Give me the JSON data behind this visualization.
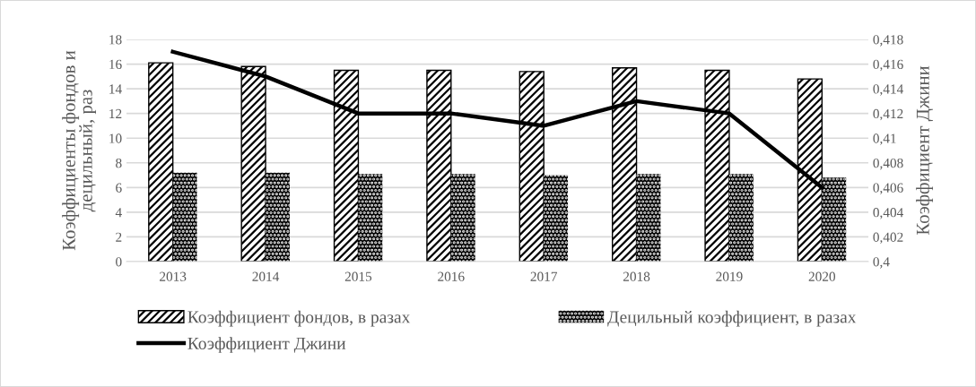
{
  "chart_data": {
    "type": "bar",
    "categories": [
      "2013",
      "2014",
      "2015",
      "2016",
      "2017",
      "2018",
      "2019",
      "2020"
    ],
    "series": [
      {
        "name": "Коэффициент фондов, в разах",
        "color": "#000000",
        "values": [
          16.1,
          15.8,
          15.5,
          15.5,
          15.4,
          15.7,
          15.5,
          14.8
        ]
      },
      {
        "name": "Децильный коэффициент, в разах",
        "color": "#000000",
        "values": [
          7.2,
          7.2,
          7.1,
          7.1,
          7.0,
          7.1,
          7.1,
          6.8
        ]
      },
      {
        "name": "Коэффициент Джини",
        "type": "line",
        "axis": "y2",
        "color": "#000000",
        "values": [
          0.417,
          0.415,
          0.412,
          0.412,
          0.411,
          0.413,
          0.412,
          0.406
        ]
      }
    ],
    "ylabel": "Коэффициенты фондов и\nдецильный, раз",
    "y2label": "Коэффициент Джини",
    "ylim": [
      0,
      18
    ],
    "yticks": [
      0,
      2,
      4,
      6,
      8,
      10,
      12,
      14,
      16,
      18
    ],
    "y2lim": [
      0.4,
      0.418
    ],
    "y2ticks": [
      {
        "value": 0.4,
        "label": "0,4"
      },
      {
        "value": 0.402,
        "label": "0,402"
      },
      {
        "value": 0.404,
        "label": "0,404"
      },
      {
        "value": 0.406,
        "label": "0,406"
      },
      {
        "value": 0.408,
        "label": "0,408"
      },
      {
        "value": 0.41,
        "label": "0,41"
      },
      {
        "value": 0.412,
        "label": "0,412"
      },
      {
        "value": 0.414,
        "label": "0,414"
      },
      {
        "value": 0.416,
        "label": "0,416"
      },
      {
        "value": 0.418,
        "label": "0,418"
      }
    ],
    "grid": "y",
    "legend": "bottom",
    "marker": "none",
    "line_style": "solid"
  }
}
